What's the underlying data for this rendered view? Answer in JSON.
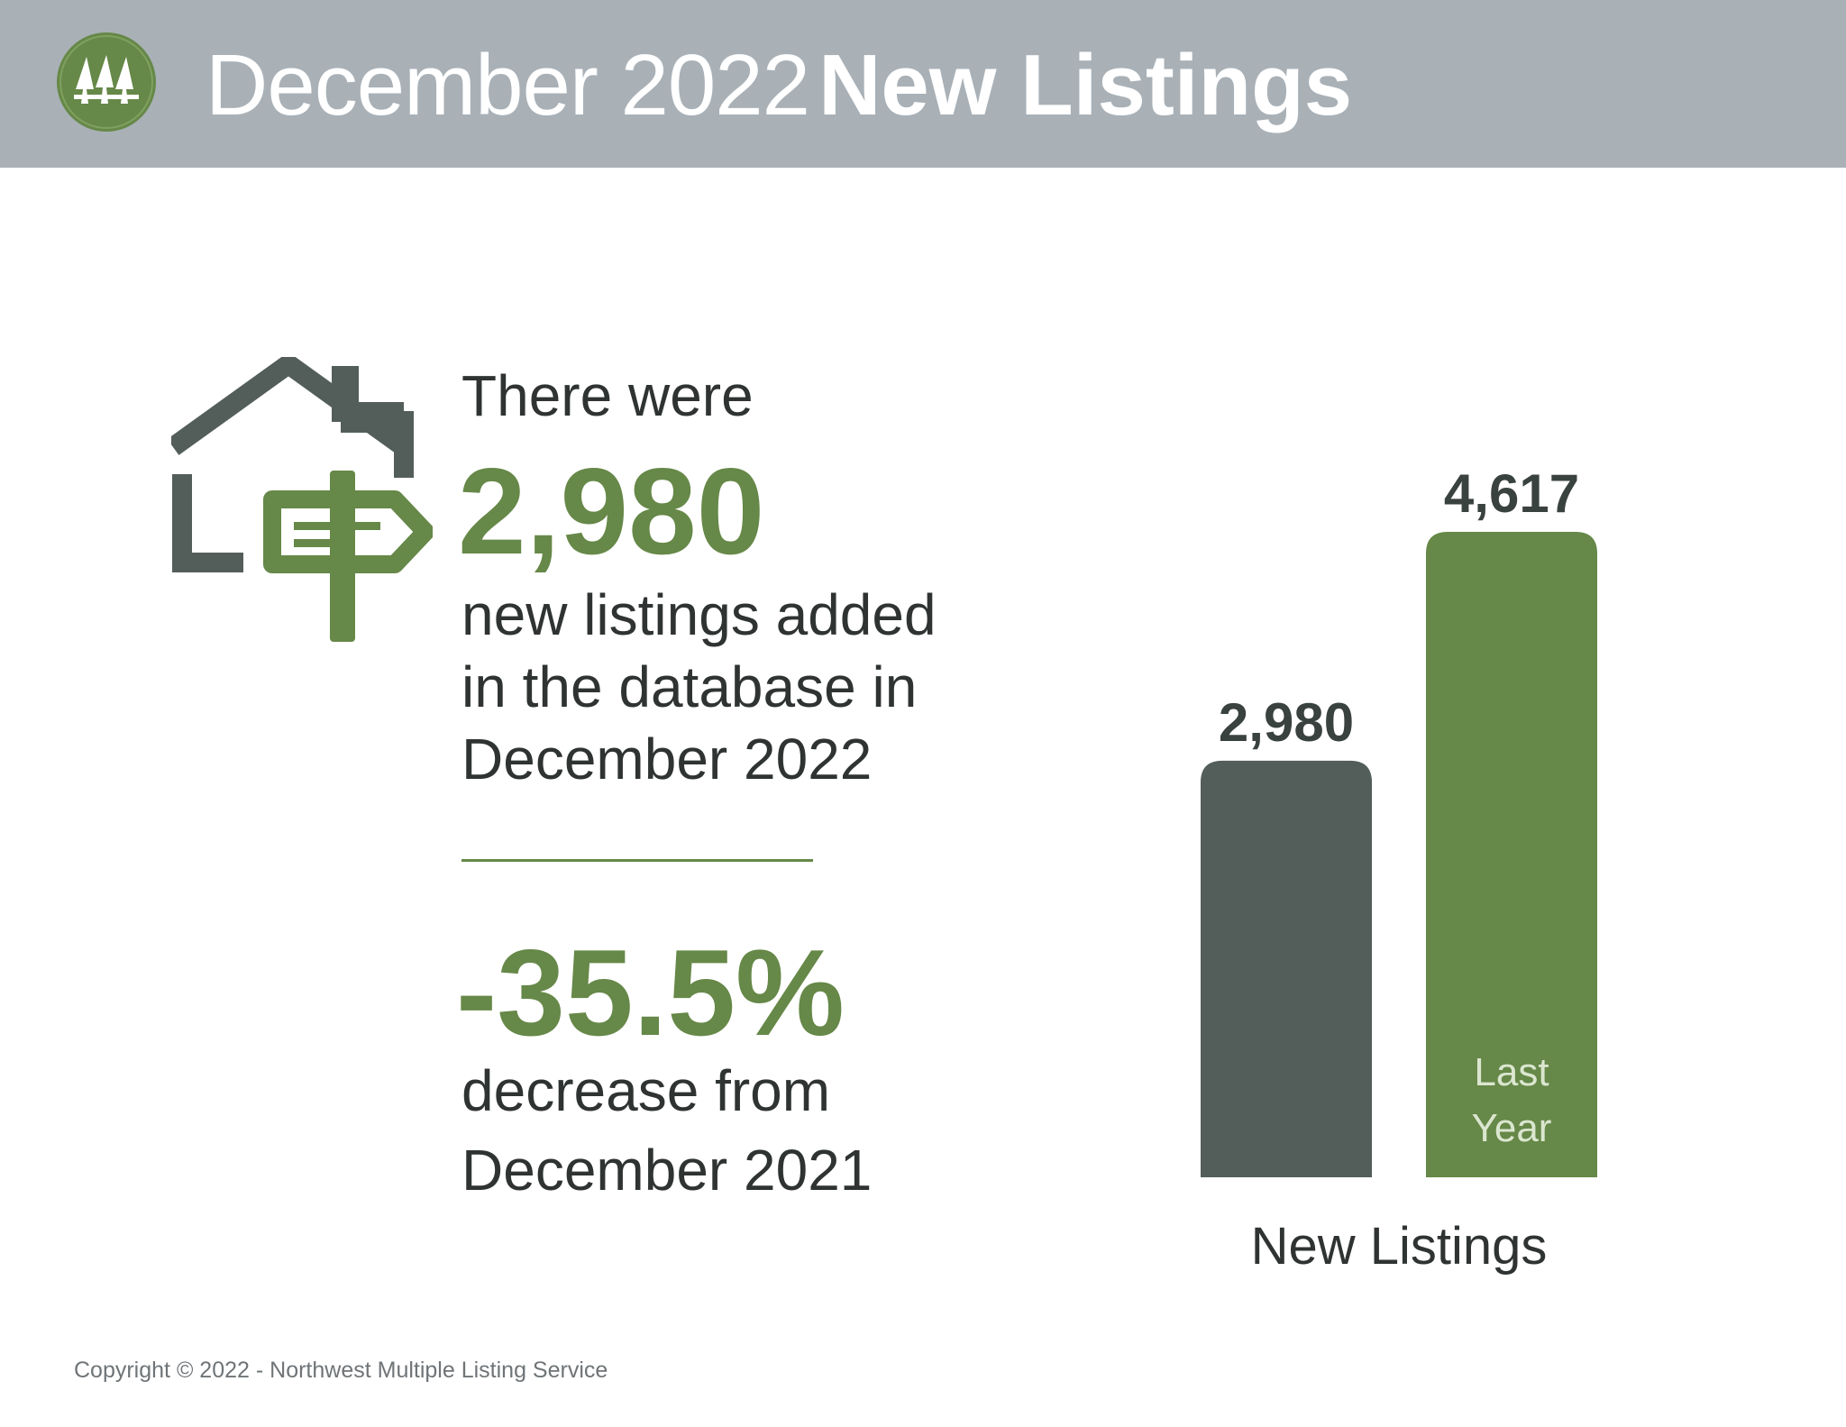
{
  "header": {
    "title_light": "December 2022",
    "title_bold": "New Listings",
    "logo_icon": "nwmls-trees-logo-icon",
    "background_color": "#a9b1b7"
  },
  "summary": {
    "house_icon": "house-with-signpost-icon",
    "intro": "There were",
    "value": "2,980",
    "description_lines": [
      "new listings added",
      "in the database in",
      "December 2022"
    ],
    "change": "-35.5%",
    "change_description_lines": [
      "decrease from",
      "December 2021"
    ]
  },
  "chart_data": {
    "type": "bar",
    "categories": [
      "",
      "Last Year"
    ],
    "values": [
      2980,
      4617
    ],
    "value_labels": [
      "2,980",
      "4,617"
    ],
    "inside_labels": [
      "",
      "Last Year"
    ],
    "colors": [
      "#535e5b",
      "#668848"
    ],
    "xlabel": "New Listings",
    "ylim": [
      0,
      4617
    ]
  },
  "footer": {
    "copyright": "Copyright © 2022 - Northwest Multiple Listing Service"
  },
  "colors": {
    "accent_green": "#668848",
    "dark_gray": "#535e5b",
    "text": "#2f3432"
  }
}
